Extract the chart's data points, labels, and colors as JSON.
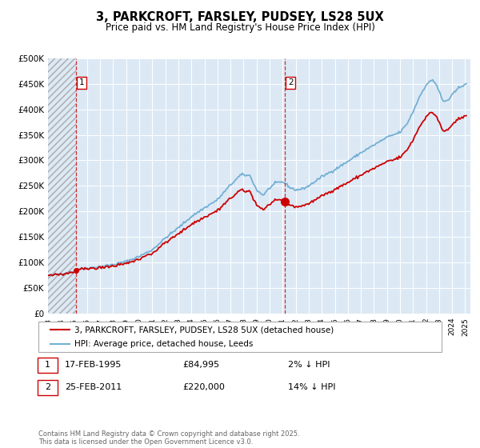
{
  "title": "3, PARKCROFT, FARSLEY, PUDSEY, LS28 5UX",
  "subtitle": "Price paid vs. HM Land Registry's House Price Index (HPI)",
  "legend_line1": "3, PARKCROFT, FARSLEY, PUDSEY, LS28 5UX (detached house)",
  "legend_line2": "HPI: Average price, detached house, Leeds",
  "annotation1_date": "17-FEB-1995",
  "annotation1_price": "£84,995",
  "annotation1_hpi": "2% ↓ HPI",
  "annotation2_date": "25-FEB-2011",
  "annotation2_price": "£220,000",
  "annotation2_hpi": "14% ↓ HPI",
  "ylim": [
    0,
    500000
  ],
  "yticks": [
    0,
    50000,
    100000,
    150000,
    200000,
    250000,
    300000,
    350000,
    400000,
    450000,
    500000
  ],
  "ytick_labels": [
    "£0",
    "£50K",
    "£100K",
    "£150K",
    "£200K",
    "£250K",
    "£300K",
    "£350K",
    "£400K",
    "£450K",
    "£500K"
  ],
  "hpi_color": "#74afd4",
  "property_color": "#cc0000",
  "marker1_year": 1995.12,
  "marker2_year": 2011.15,
  "marker1_value": 84995,
  "marker2_value": 220000,
  "vline1_year": 1995.12,
  "vline2_year": 2011.15,
  "bg_color": "#dce9f5",
  "footer": "Contains HM Land Registry data © Crown copyright and database right 2025.\nThis data is licensed under the Open Government Licence v3.0."
}
